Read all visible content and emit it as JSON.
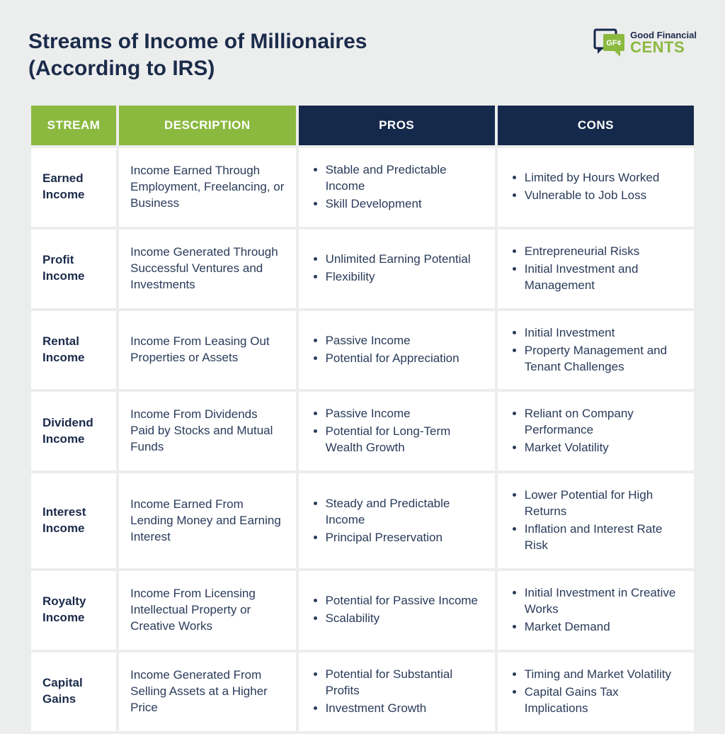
{
  "title_line1": "Streams of Income of Millionaires",
  "title_line2": "(According to IRS)",
  "logo": {
    "abbr": "GF¢",
    "line1": "Good Financial",
    "line2": "CENTS"
  },
  "colors": {
    "header_green": "#8bb940",
    "header_navy": "#15294b",
    "page_bg": "#eceded",
    "cell_bg": "#ffffff",
    "text_navy": "#1b2b4a",
    "text_body": "#2a3b5a"
  },
  "columns": [
    {
      "key": "stream",
      "label": "STREAM",
      "header_color": "#8bb940"
    },
    {
      "key": "description",
      "label": "DESCRIPTION",
      "header_color": "#8bb940"
    },
    {
      "key": "pros",
      "label": "PROS",
      "header_color": "#15294b"
    },
    {
      "key": "cons",
      "label": "CONS",
      "header_color": "#15294b"
    }
  ],
  "rows": [
    {
      "stream": "Earned Income",
      "description": "Income Earned Through Employment, Freelancing, or Business",
      "pros": [
        "Stable and Predictable Income",
        "Skill Development"
      ],
      "cons": [
        "Limited by Hours Worked",
        "Vulnerable to Job Loss"
      ]
    },
    {
      "stream": "Profit Income",
      "description": "Income Generated Through Successful Ventures and Investments",
      "pros": [
        "Unlimited Earning Potential",
        "Flexibility"
      ],
      "cons": [
        "Entrepreneurial Risks",
        "Initial Investment and Management"
      ]
    },
    {
      "stream": "Rental Income",
      "description": "Income From Leasing Out Properties or Assets",
      "pros": [
        "Passive Income",
        "Potential for Appreciation"
      ],
      "cons": [
        "Initial Investment",
        "Property Management and Tenant Challenges"
      ]
    },
    {
      "stream": "Dividend Income",
      "description": "Income From Dividends Paid by Stocks and Mutual Funds",
      "pros": [
        "Passive Income",
        "Potential for Long-Term Wealth Growth"
      ],
      "cons": [
        "Reliant on Company Performance",
        "Market Volatility"
      ]
    },
    {
      "stream": "Interest Income",
      "description": "Income Earned From Lending Money and Earning Interest",
      "pros": [
        "Steady and Predictable Income",
        "Principal Preservation"
      ],
      "cons": [
        "Lower Potential for High Returns",
        "Inflation and Interest Rate Risk"
      ]
    },
    {
      "stream": "Royalty Income",
      "description": "Income From Licensing Intellectual Property or Creative Works",
      "pros": [
        "Potential for Passive Income",
        "Scalability"
      ],
      "cons": [
        "Initial Investment in Creative Works",
        "Market Demand"
      ]
    },
    {
      "stream": "Capital Gains",
      "description": "Income Generated From Selling Assets at a Higher Price",
      "pros": [
        "Potential for Substantial Profits",
        "Investment Growth"
      ],
      "cons": [
        "Timing and Market Volatility",
        "Capital Gains Tax Implications"
      ]
    }
  ]
}
